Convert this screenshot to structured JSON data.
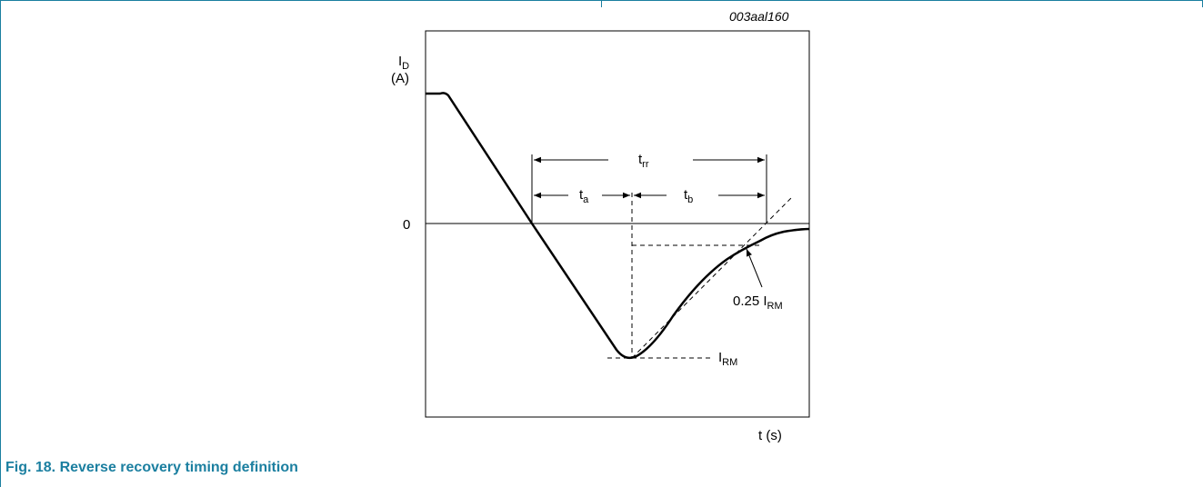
{
  "figure_id": "003aal160",
  "caption": "Fig. 18.  Reverse recovery timing definition",
  "y_label_main": "I",
  "y_label_sub": "D",
  "y_unit": "(A)",
  "x_label": "t (s)",
  "zero_label": "0",
  "trr_main": "t",
  "trr_sub": "rr",
  "ta_main": "t",
  "ta_sub": "a",
  "tb_main": "t",
  "tb_sub": "b",
  "irm_main": "I",
  "irm_sub": "RM",
  "quarter_irm_main": "0.25 I",
  "quarter_irm_sub": "RM",
  "colors": {
    "accent": "#1b7fa0",
    "line": "#000000"
  }
}
